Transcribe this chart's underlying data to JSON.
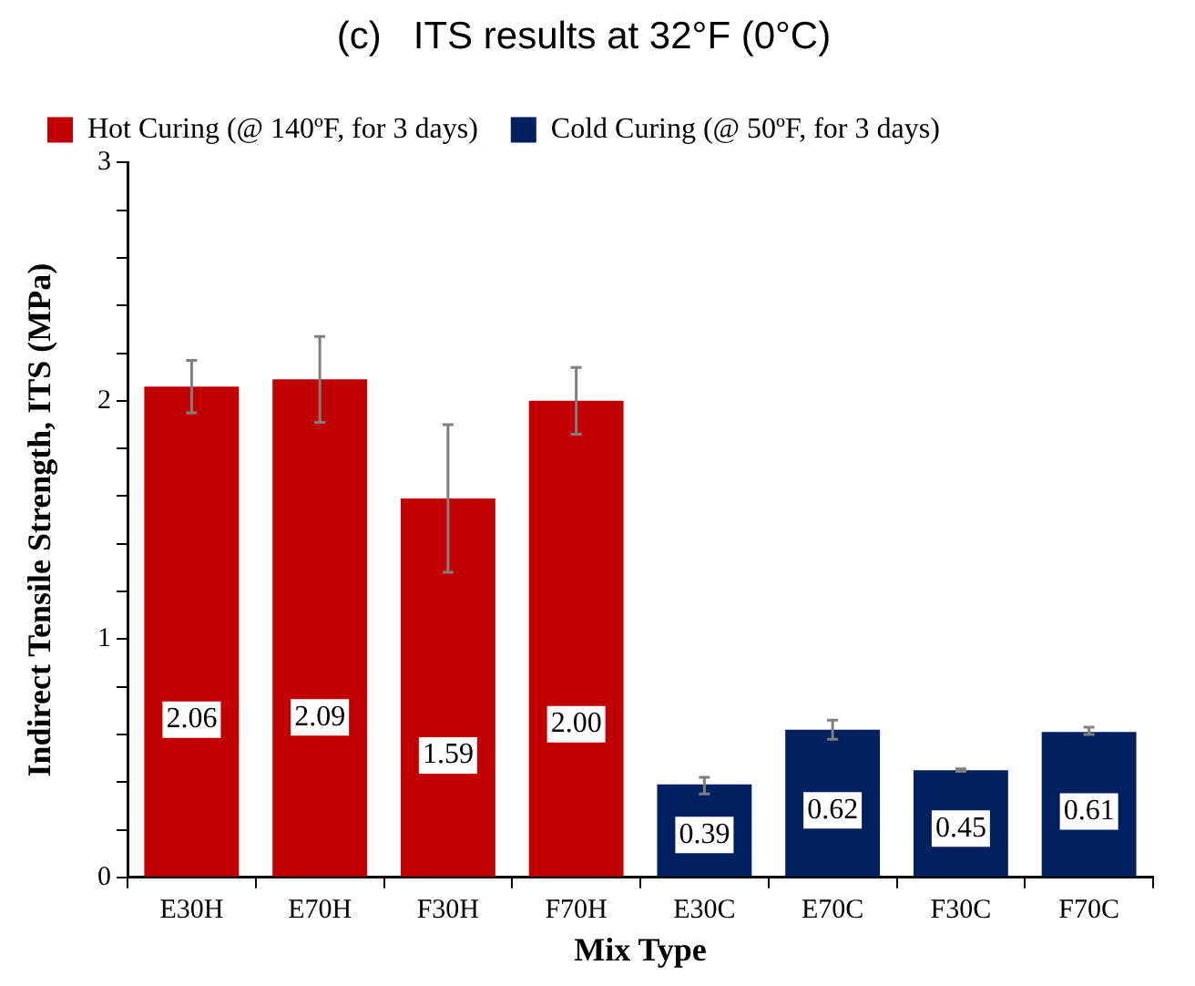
{
  "chart_data": {
    "type": "bar",
    "title": "(c)   ITS results at 32°F (0°C)",
    "xlabel": "Mix Type",
    "ylabel": "Indirect Tensile Strength, ITS (MPa)",
    "categories": [
      "E30H",
      "E70H",
      "F30H",
      "F70H",
      "E30C",
      "E70C",
      "F30C",
      "F70C"
    ],
    "series": [
      {
        "name": "Hot Curing (@ 140ºF, for 3 days)",
        "color": "#c00000",
        "values": [
          2.06,
          2.09,
          1.59,
          2.0,
          null,
          null,
          null,
          null
        ],
        "errors": [
          [
            1.95,
            2.17
          ],
          [
            1.91,
            2.27
          ],
          [
            1.28,
            1.9
          ],
          [
            1.86,
            2.14
          ],
          null,
          null,
          null,
          null
        ],
        "value_labels": [
          "2.06",
          "2.09",
          "1.59",
          "2.00",
          null,
          null,
          null,
          null
        ]
      },
      {
        "name": "Cold Curing (@ 50ºF, for 3 days)",
        "color": "#002060",
        "values": [
          null,
          null,
          null,
          null,
          0.39,
          0.62,
          0.45,
          0.61
        ],
        "errors": [
          null,
          null,
          null,
          null,
          [
            0.35,
            0.42
          ],
          [
            0.58,
            0.66
          ],
          [
            0.445,
            0.455
          ],
          [
            0.6,
            0.63
          ]
        ],
        "value_labels": [
          null,
          null,
          null,
          null,
          "0.39",
          "0.62",
          "0.45",
          "0.61"
        ]
      }
    ],
    "ylim": [
      0,
      3
    ],
    "yticks": [
      0,
      {
        "value": 0.2,
        "label": null
      },
      {
        "value": 0.4,
        "label": null
      },
      {
        "value": 0.6,
        "label": null
      },
      {
        "value": 0.8,
        "label": null
      },
      1,
      {
        "value": 1.2,
        "label": null
      },
      {
        "value": 1.4,
        "label": null
      },
      {
        "value": 1.6,
        "label": null
      },
      {
        "value": 1.8,
        "label": null
      },
      2,
      {
        "value": 2.2,
        "label": null
      },
      {
        "value": 2.4,
        "label": null
      },
      {
        "value": 2.6,
        "label": null
      },
      {
        "value": 2.8,
        "label": null
      },
      3
    ],
    "grid": false,
    "legend": "top left"
  }
}
